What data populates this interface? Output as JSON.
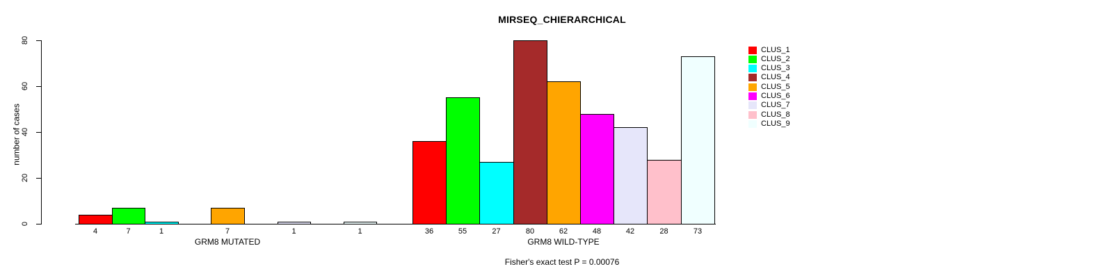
{
  "chart_data": {
    "type": "grouped-bar",
    "title": "MIRSEQ_CHIERARCHICAL",
    "subtitle": "Fisher's exact test P = 0.00076",
    "ylabel": "number of cases",
    "ylim": [
      0,
      80
    ],
    "yticks": [
      0,
      20,
      40,
      60,
      80
    ],
    "grid": false,
    "legend_position": "right-inside",
    "bar_border_color": "#000000",
    "background_color": "#FFFFFF",
    "clusters": [
      {
        "name": "CLUS_1",
        "color": "#FF0000"
      },
      {
        "name": "CLUS_2",
        "color": "#00FF00"
      },
      {
        "name": "CLUS_3",
        "color": "#00FFFF"
      },
      {
        "name": "CLUS_4",
        "color": "#A52A2A"
      },
      {
        "name": "CLUS_5",
        "color": "#FFA500"
      },
      {
        "name": "CLUS_6",
        "color": "#FF00FF"
      },
      {
        "name": "CLUS_7",
        "color": "#E6E6FA"
      },
      {
        "name": "CLUS_8",
        "color": "#FFC0CB"
      },
      {
        "name": "CLUS_9",
        "color": "#F0FFFF"
      }
    ],
    "groups": [
      {
        "label": "GRM8 MUTATED",
        "values": [
          4,
          7,
          1,
          0,
          7,
          0,
          1,
          0,
          1
        ]
      },
      {
        "label": "GRM8 WILD-TYPE",
        "values": [
          36,
          55,
          27,
          80,
          62,
          48,
          42,
          28,
          73
        ]
      }
    ],
    "hide_zero_bars": true
  }
}
